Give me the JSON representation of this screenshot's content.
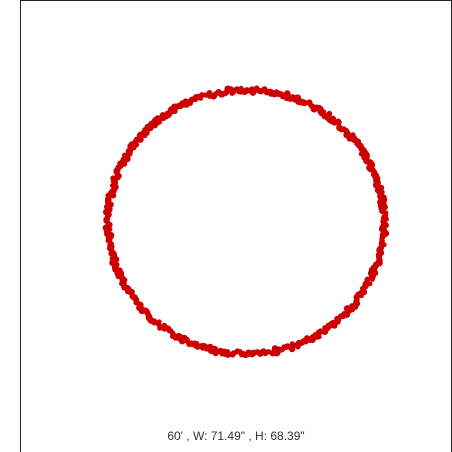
{
  "canvas": {
    "shape": "circle",
    "stroke_color": "#cc0000",
    "background_color": "#ffffff",
    "border_color": "#222222"
  },
  "readout": {
    "text": "60' , W: 71.49\" , H: 68.39\""
  }
}
